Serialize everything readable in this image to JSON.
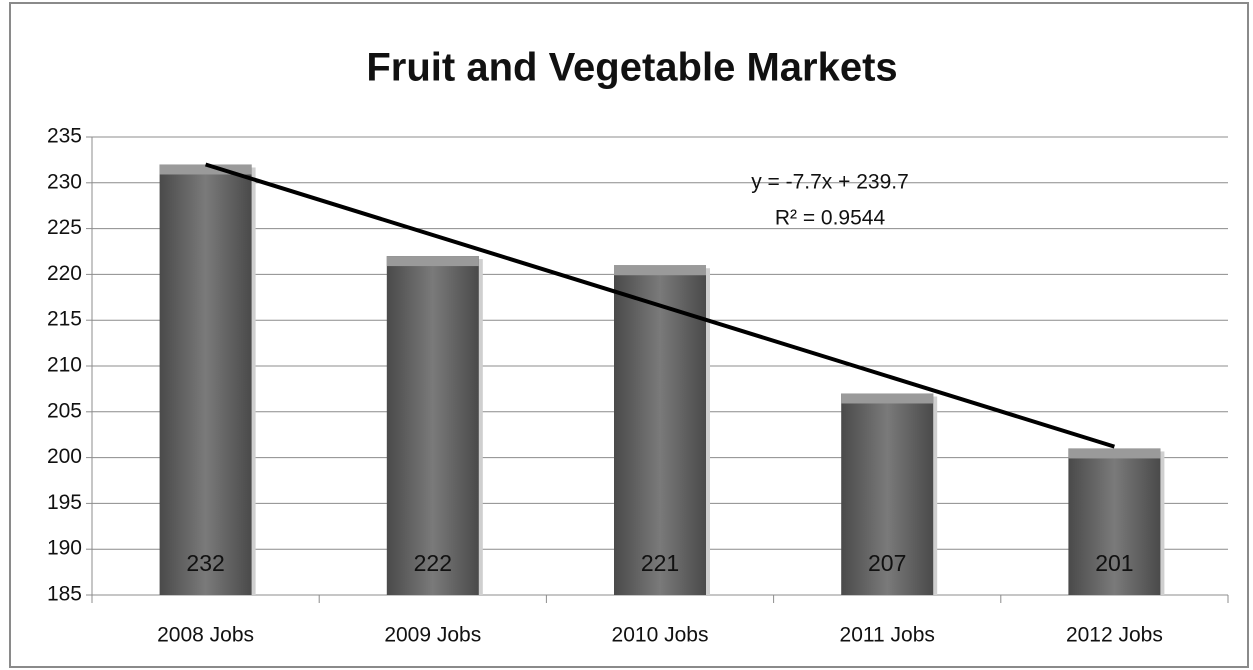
{
  "chart_data": {
    "type": "bar",
    "title": "Fruit and Vegetable Markets",
    "categories": [
      "2008 Jobs",
      "2009 Jobs",
      "2010 Jobs",
      "2011 Jobs",
      "2012 Jobs"
    ],
    "values": [
      232,
      222,
      221,
      207,
      201
    ],
    "color": "#6e6e6e",
    "ylim": [
      185,
      235
    ],
    "yticks": [
      185,
      190,
      195,
      200,
      205,
      210,
      215,
      220,
      225,
      230,
      235
    ],
    "grid": true,
    "trendline": {
      "slope": -7.7,
      "intercept": 239.7,
      "label": "y = -7.7x + 239.7",
      "r_squared_label": "R² = 0.9544"
    }
  }
}
